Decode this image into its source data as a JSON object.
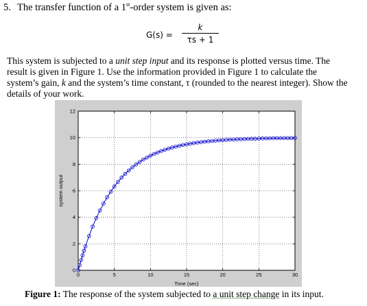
{
  "question": {
    "number": "5.",
    "title_before": "The transfer function of a 1",
    "title_sup": "st",
    "title_after": "-order system is given as:"
  },
  "equation": {
    "lhs": "G(s) =",
    "numerator": "k",
    "denominator": "τs + 1"
  },
  "paragraph": {
    "p1": "This system is subjected to a ",
    "p2": "unit step input",
    "p3": " and its response is plotted versus time. The result is given in Figure 1. Use the information provided in Figure 1 to calculate the system’s gain, ",
    "p4": "k",
    "p5": " and the system’s time constant, τ (rounded to the nearest integer). Show the details of your work."
  },
  "caption": {
    "label": "Figure 1:",
    "text_before": " The response of the system subjected to ",
    "link": "a unit step change",
    "text_after": " in its input."
  },
  "chart_data": {
    "type": "line",
    "xlabel": "Time (sec)",
    "ylabel": "system output",
    "xlim": [
      0,
      30
    ],
    "ylim": [
      0,
      12
    ],
    "xticks": [
      "0",
      "5",
      "10",
      "15",
      "20",
      "25",
      "30"
    ],
    "yticks": [
      "0",
      "2",
      "4",
      "6",
      "8",
      "10",
      "12"
    ],
    "grid": true,
    "series": [
      {
        "marker": "circle",
        "color": "#0000cc",
        "x": [
          0,
          0.2,
          0.4,
          0.6,
          0.8,
          1,
          1.5,
          2,
          2.5,
          3,
          3.5,
          4,
          4.5,
          5,
          5.5,
          6,
          6.5,
          7,
          7.5,
          8,
          8.5,
          9,
          9.5,
          10,
          10.5,
          11,
          11.5,
          12,
          12.5,
          13,
          13.5,
          14,
          14.5,
          15,
          15.5,
          16,
          16.5,
          17,
          17.5,
          18,
          18.5,
          19,
          19.5,
          20,
          20.5,
          21,
          21.5,
          22,
          22.5,
          23,
          23.5,
          24,
          24.5,
          25,
          25.5,
          26,
          26.5,
          27,
          27.5,
          28,
          28.5,
          29,
          29.5,
          30
        ],
        "y": [
          0,
          0.39,
          0.77,
          1.13,
          1.48,
          1.81,
          2.59,
          3.3,
          3.94,
          4.51,
          5.03,
          5.51,
          5.93,
          6.32,
          6.67,
          6.99,
          7.27,
          7.53,
          7.77,
          7.98,
          8.17,
          8.35,
          8.5,
          8.65,
          8.77,
          8.89,
          9.0,
          9.09,
          9.18,
          9.26,
          9.33,
          9.39,
          9.45,
          9.5,
          9.55,
          9.59,
          9.63,
          9.67,
          9.7,
          9.73,
          9.75,
          9.78,
          9.8,
          9.82,
          9.83,
          9.85,
          9.86,
          9.88,
          9.89,
          9.9,
          9.91,
          9.92,
          9.92,
          9.93,
          9.94,
          9.95,
          9.95,
          9.96,
          9.96,
          9.96,
          9.97,
          9.97,
          9.97,
          9.98
        ]
      }
    ]
  }
}
